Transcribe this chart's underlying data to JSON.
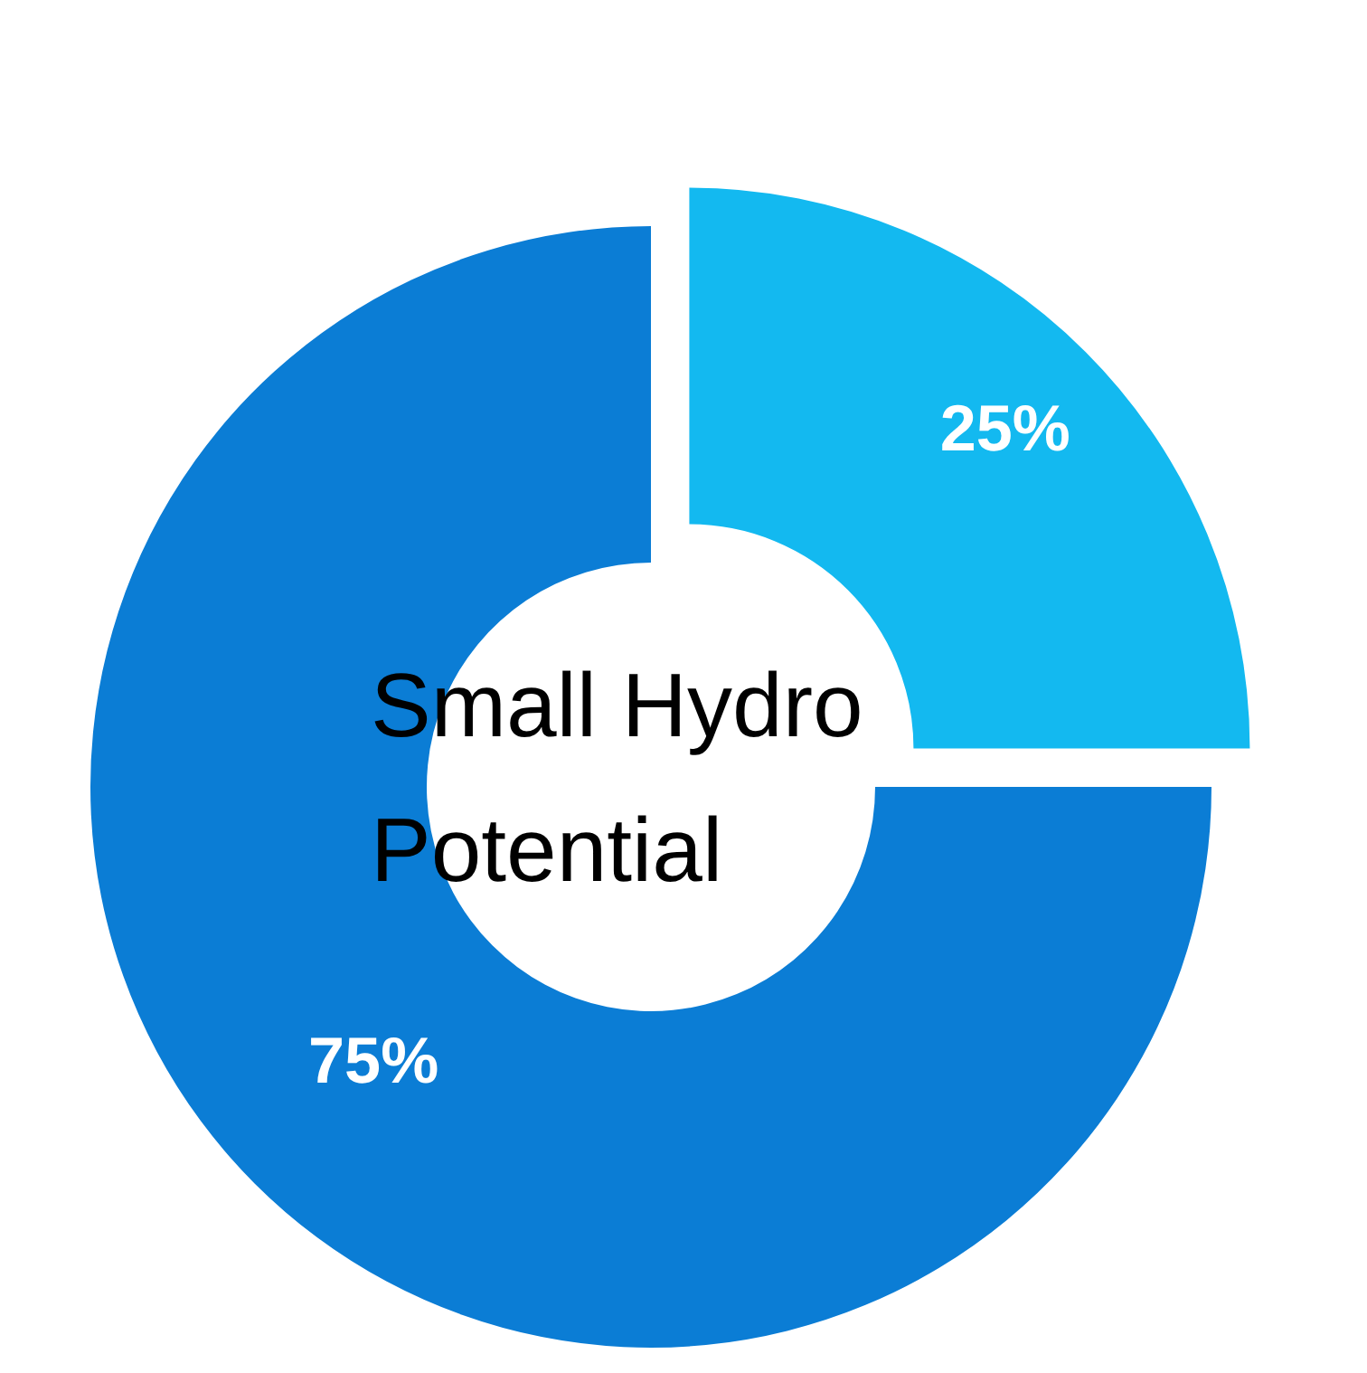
{
  "chart_data": {
    "type": "donut",
    "title": "Small Hydro Potential",
    "categories": [
      null,
      null
    ],
    "values": [
      25,
      75
    ],
    "colors": [
      "#13b9f0",
      "#0b7dd5"
    ],
    "value_labels": [
      "25%",
      "75%"
    ],
    "legend": false
  }
}
